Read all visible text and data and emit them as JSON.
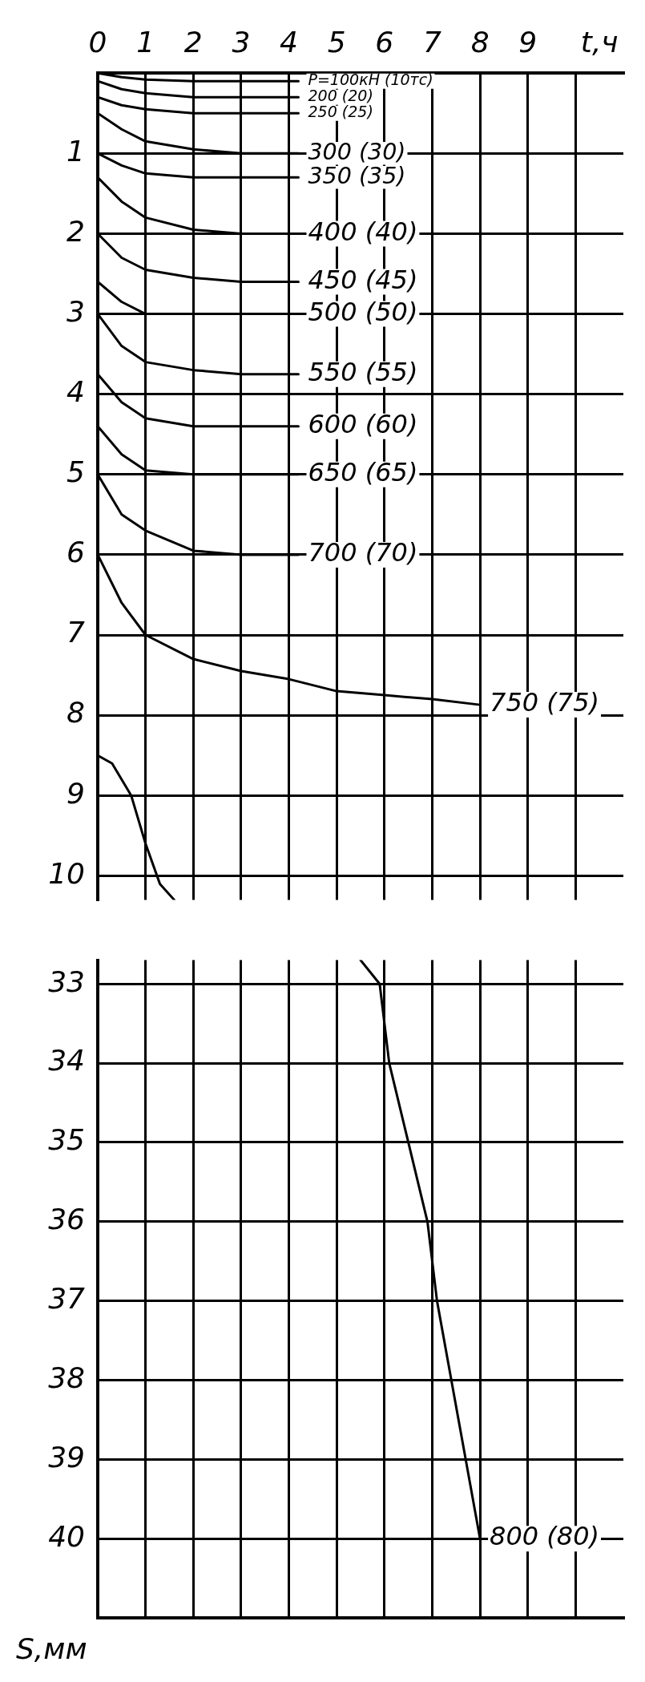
{
  "chart_data": [
    {
      "type": "line",
      "xlabel": "t,ч",
      "xlim": [
        0,
        11
      ],
      "xticks": [
        0,
        1,
        2,
        3,
        4,
        5,
        6,
        7,
        8,
        9,
        {
          "value": 10,
          "label": null
        }
      ],
      "ylim": [
        10.3,
        0
      ],
      "yticks": [
        {
          "value": 0,
          "label": null
        },
        1,
        2,
        3,
        4,
        5,
        6,
        7,
        8,
        9,
        10
      ],
      "grid": true,
      "legend": false,
      "marker": "none",
      "line_style": "solid",
      "series": [
        {
          "name": "P=100кН (10тс)",
          "color": "#000000",
          "x": [
            0,
            0.5,
            1,
            2,
            3,
            4.2
          ],
          "values": [
            0,
            0.05,
            0.08,
            0.1,
            0.1,
            0.1
          ]
        },
        {
          "name": "200 (20)",
          "color": "#000000",
          "x": [
            0,
            0.5,
            1,
            2,
            3,
            4.2
          ],
          "values": [
            0.1,
            0.2,
            0.25,
            0.3,
            0.3,
            0.3
          ]
        },
        {
          "name": "250 (25)",
          "color": "#000000",
          "x": [
            0,
            0.5,
            1,
            2,
            3,
            4.2
          ],
          "values": [
            0.3,
            0.4,
            0.45,
            0.5,
            0.5,
            0.5
          ]
        },
        {
          "name": "300 (30)",
          "color": "#000000",
          "x": [
            0,
            0.5,
            1,
            2,
            3,
            4.2
          ],
          "values": [
            0.5,
            0.7,
            0.85,
            0.95,
            1.0,
            1.0
          ]
        },
        {
          "name": "350 (35)",
          "color": "#000000",
          "x": [
            0,
            0.5,
            1,
            2,
            3,
            4.2
          ],
          "values": [
            1.0,
            1.15,
            1.25,
            1.3,
            1.3,
            1.3
          ]
        },
        {
          "name": "400 (40)",
          "color": "#000000",
          "x": [
            0,
            0.5,
            1,
            2,
            3,
            4.2
          ],
          "values": [
            1.3,
            1.6,
            1.8,
            1.95,
            2.0,
            2.0
          ]
        },
        {
          "name": "450 (45)",
          "color": "#000000",
          "x": [
            0,
            0.5,
            1,
            2,
            3,
            4.2
          ],
          "values": [
            2.0,
            2.3,
            2.45,
            2.55,
            2.6,
            2.6
          ]
        },
        {
          "name": "500 (50)",
          "color": "#000000",
          "x": [
            0,
            0.5,
            1,
            2,
            3,
            4.2
          ],
          "values": [
            2.6,
            2.85,
            3.0,
            3.0,
            3.0,
            3.0
          ]
        },
        {
          "name": "550 (55)",
          "color": "#000000",
          "x": [
            0,
            0.5,
            1,
            2,
            3,
            4.2
          ],
          "values": [
            3.0,
            3.4,
            3.6,
            3.7,
            3.75,
            3.75
          ]
        },
        {
          "name": "600 (60)",
          "color": "#000000",
          "x": [
            0,
            0.5,
            1,
            2,
            3,
            4.2
          ],
          "values": [
            3.75,
            4.1,
            4.3,
            4.4,
            4.4,
            4.4
          ]
        },
        {
          "name": "650 (65)",
          "color": "#000000",
          "x": [
            0,
            0.5,
            1,
            2,
            3,
            4.2
          ],
          "values": [
            4.4,
            4.75,
            4.95,
            5.0,
            5.0,
            5.0
          ]
        },
        {
          "name": "700 (70)",
          "color": "#000000",
          "x": [
            0,
            0.5,
            1,
            2,
            3,
            4.2
          ],
          "values": [
            5.0,
            5.5,
            5.7,
            5.95,
            6.0,
            6.0
          ]
        },
        {
          "name": "750 (75)",
          "color": "#000000",
          "x": [
            0,
            0.5,
            1,
            2,
            3,
            4,
            5,
            6,
            7,
            8
          ],
          "values": [
            6.0,
            6.6,
            7.0,
            7.3,
            7.45,
            7.55,
            7.7,
            7.75,
            7.8,
            7.87
          ]
        },
        {
          "color": "#000000",
          "x": [
            0,
            0.3,
            0.7,
            1,
            1.3,
            1.6
          ],
          "values": [
            8.5,
            8.6,
            9.0,
            9.6,
            10.1,
            10.3
          ]
        }
      ]
    },
    {
      "type": "line",
      "ylabel": "S,мм",
      "xlim": [
        0,
        11
      ],
      "xticks": [
        0,
        1,
        2,
        3,
        4,
        5,
        6,
        7,
        8,
        9,
        10
      ],
      "tick_labels": "y",
      "ylim": [
        41,
        32.7
      ],
      "yticks": [
        33,
        34,
        35,
        36,
        37,
        38,
        39,
        40
      ],
      "grid": true,
      "legend": false,
      "marker": "none",
      "line_style": "solid",
      "series": [
        {
          "name": "800 (80)",
          "color": "#000000",
          "x": [
            5.5,
            5.9,
            6.1,
            6.5,
            6.9,
            7.1,
            7.4,
            7.7,
            8.0
          ],
          "values": [
            32.7,
            33,
            34,
            35,
            36,
            37,
            38,
            39,
            40
          ]
        }
      ]
    }
  ]
}
